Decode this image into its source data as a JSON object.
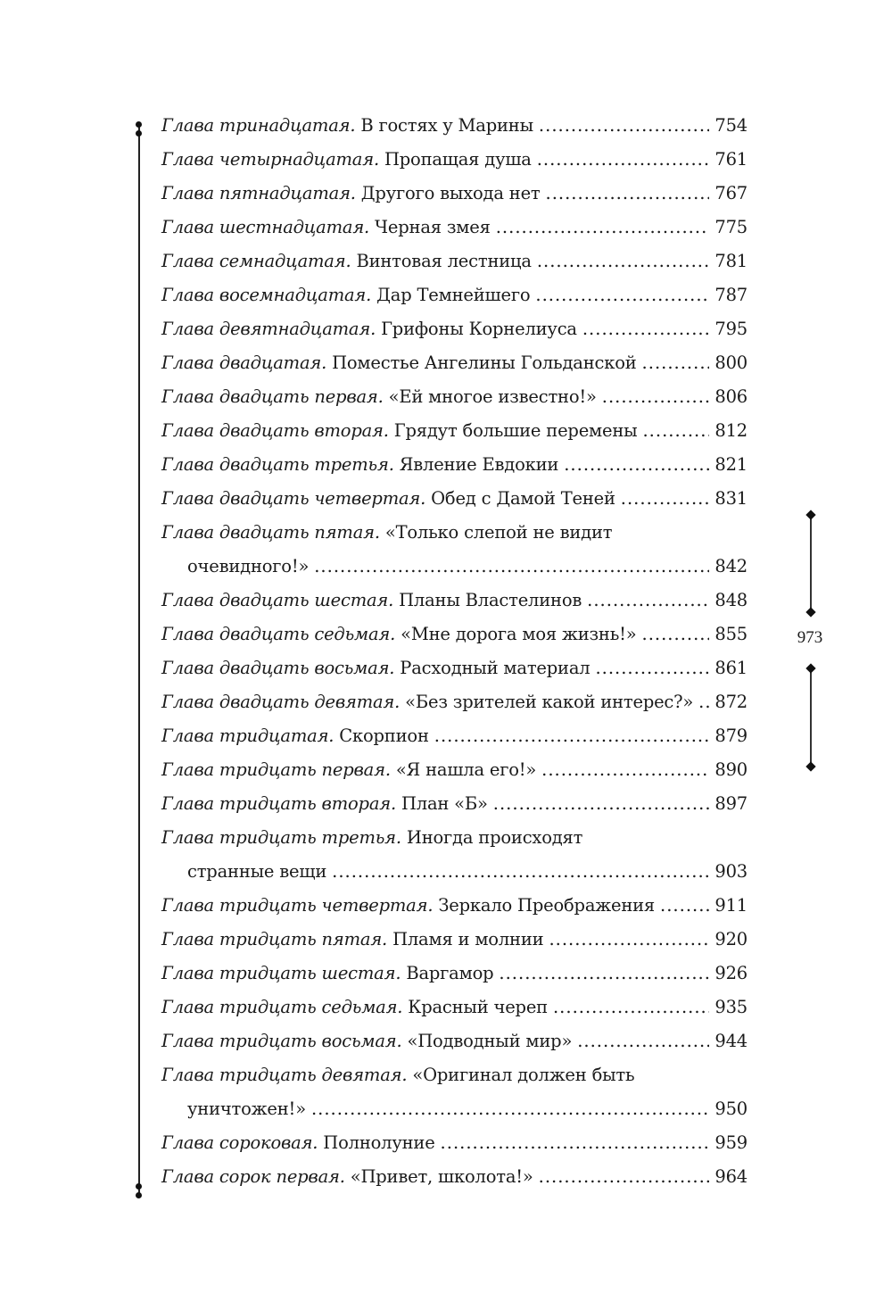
{
  "entries": [
    {
      "label": "Глава тринадцатая.",
      "title": "В гостях у Марины",
      "page": "754"
    },
    {
      "label": "Глава четырнадцатая.",
      "title": "Пропащая душа",
      "page": "761"
    },
    {
      "label": "Глава пятнадцатая.",
      "title": "Другого выхода нет",
      "page": "767"
    },
    {
      "label": "Глава шестнадцатая.",
      "title": "Черная змея",
      "page": "775"
    },
    {
      "label": "Глава семнадцатая.",
      "title": "Винтовая лестница",
      "page": "781"
    },
    {
      "label": "Глава восемнадцатая.",
      "title": "Дар Темнейшего",
      "page": "787"
    },
    {
      "label": "Глава девятнадцатая.",
      "title": "Грифоны Корнелиуса",
      "page": "795"
    },
    {
      "label": "Глава двадцатая.",
      "title": "Поместье Ангелины Гольданской",
      "page": "800"
    },
    {
      "label": "Глава двадцать первая.",
      "title": "«Ей многое известно!»",
      "page": "806"
    },
    {
      "label": "Глава двадцать вторая.",
      "title": "Грядут большие перемены",
      "page": "812"
    },
    {
      "label": "Глава двадцать третья.",
      "title": "Явление Евдокии",
      "page": "821"
    },
    {
      "label": "Глава двадцать четвертая.",
      "title": "Обед с Дамой Теней",
      "page": "831"
    },
    {
      "label": "Глава двадцать пятая.",
      "title": "«Только слепой не видит",
      "title2": "очевидного!»",
      "page": "842"
    },
    {
      "label": "Глава двадцать шестая.",
      "title": "Планы Властелинов",
      "page": "848"
    },
    {
      "label": "Глава двадцать седьмая.",
      "title": "«Мне дорога моя жизнь!»",
      "page": "855"
    },
    {
      "label": "Глава двадцать восьмая.",
      "title": "Расходный материал",
      "page": "861"
    },
    {
      "label": "Глава двадцать девятая.",
      "title": "«Без зрителей какой интерес?»",
      "page": "872"
    },
    {
      "label": "Глава тридцатая.",
      "title": "Скорпион",
      "page": "879"
    },
    {
      "label": "Глава тридцать первая.",
      "title": "«Я нашла его!»",
      "page": "890"
    },
    {
      "label": "Глава тридцать вторая.",
      "title": "План «Б»",
      "page": "897"
    },
    {
      "label": "Глава тридцать третья.",
      "title": "Иногда происходят",
      "title2": "странные вещи",
      "page": "903"
    },
    {
      "label": "Глава тридцать четвертая.",
      "title": "Зеркало Преображения",
      "page": "911"
    },
    {
      "label": "Глава тридцать пятая.",
      "title": "Пламя и молнии",
      "page": "920"
    },
    {
      "label": "Глава тридцать шестая.",
      "title": "Варгамор",
      "page": "926"
    },
    {
      "label": "Глава тридцать седьмая.",
      "title": "Красный череп",
      "page": "935"
    },
    {
      "label": "Глава тридцать восьмая.",
      "title": "«Подводный мир»",
      "page": "944"
    },
    {
      "label": "Глава тридцать девятая.",
      "title": "«Оригинал должен быть",
      "title2": "уничтожен!»",
      "page": "950"
    },
    {
      "label": "Глава сороковая.",
      "title": "Полнолуние",
      "page": "959"
    },
    {
      "label": "Глава сорок первая.",
      "title": "«Привет, школота!»",
      "page": "964"
    }
  ],
  "folio": "973"
}
